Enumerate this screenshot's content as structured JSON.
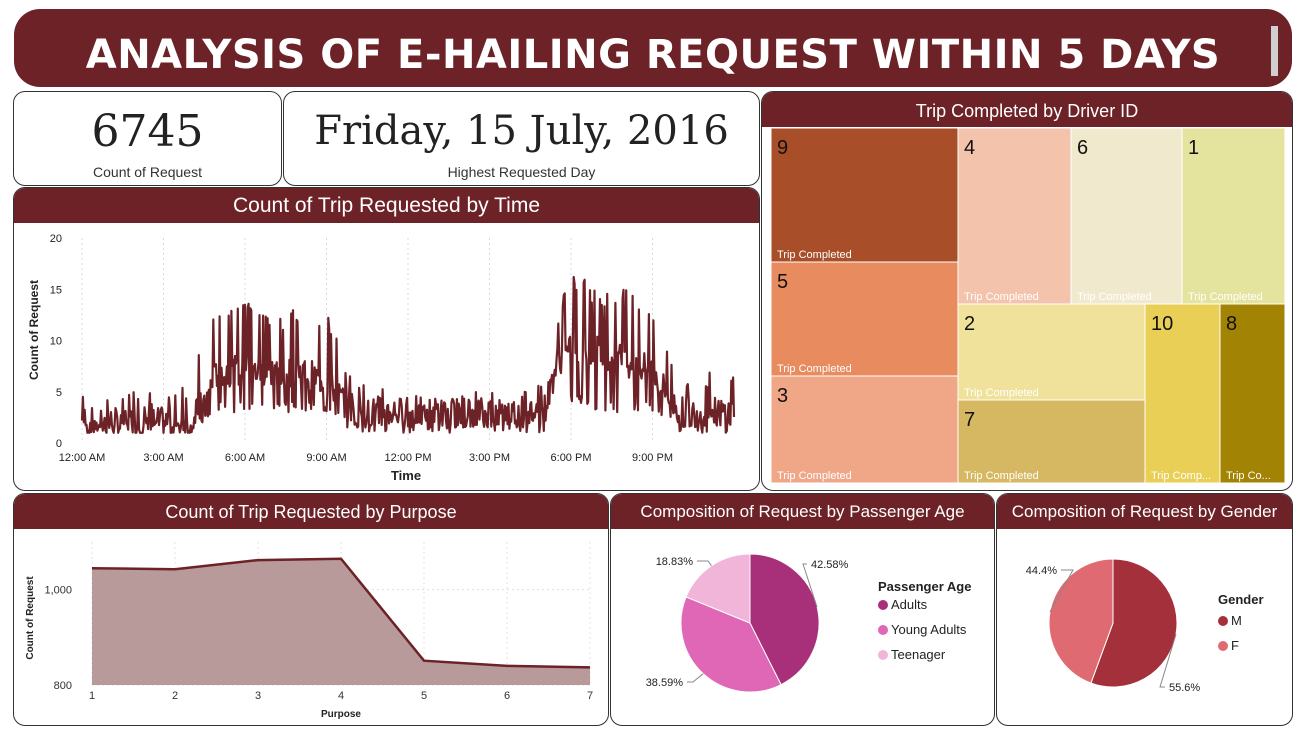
{
  "header": {
    "title": "ANALYSIS OF E-HAILING REQUEST WITHIN 5 DAYS"
  },
  "kpis": {
    "count": {
      "value": "6745",
      "label": "Count of Request"
    },
    "highest_day": {
      "value": "Friday, 15 July, 2016",
      "label": "Highest Requested Day"
    }
  },
  "colors": {
    "accent": "#6c2227",
    "line": "#6c2227",
    "area_fill": "#b99a9a",
    "adults": "#a8307a",
    "young_adults": "#e066b6",
    "teenager": "#f0b5d9",
    "male": "#a3303a",
    "female": "#e06a72"
  },
  "chart_data": [
    {
      "type": "line",
      "title": "Count of Trip Requested by Time",
      "xlabel": "Time",
      "ylabel": "Count of Request",
      "ylim": [
        0,
        20
      ],
      "yticks": [
        "0",
        "5",
        "10",
        "15",
        "20"
      ],
      "xticks": [
        "12:00 AM",
        "3:00 AM",
        "6:00 AM",
        "9:00 AM",
        "12:00 PM",
        "3:00 PM",
        "6:00 PM",
        "9:00 PM"
      ],
      "x_range_hours": [
        0,
        24
      ],
      "series": [
        {
          "hours": [
            0,
            1,
            2,
            3,
            4,
            4.5,
            5,
            6,
            7,
            8,
            9,
            10,
            11,
            12,
            13,
            14,
            15,
            16,
            17,
            17.5,
            18,
            19,
            20,
            21,
            22,
            23,
            24
          ],
          "low": [
            1,
            1,
            1,
            1,
            1,
            2,
            3,
            3,
            3,
            3,
            3,
            1,
            1,
            1,
            1,
            1,
            1,
            1,
            1,
            3,
            4,
            3,
            3,
            3,
            1,
            1,
            1
          ],
          "typical": [
            2,
            2,
            2,
            2,
            2,
            4,
            7,
            7,
            7,
            7,
            6,
            3,
            3,
            3,
            3,
            3,
            3,
            3,
            3,
            8,
            9,
            9,
            8,
            7,
            3,
            3,
            3
          ],
          "high": [
            5,
            5,
            5,
            5,
            6,
            11,
            13,
            14,
            13,
            13,
            13,
            6,
            6,
            5,
            5,
            5,
            5,
            5,
            6,
            13,
            17,
            15,
            15,
            13,
            7,
            7,
            7
          ]
        }
      ]
    },
    {
      "type": "area",
      "title": "Count of Trip Requested by Purpose",
      "xlabel": "Purpose",
      "ylabel": "Count of Request",
      "categories": [
        "1",
        "2",
        "3",
        "4",
        "5",
        "6",
        "7"
      ],
      "values": [
        1045,
        1043,
        1062,
        1065,
        851,
        840,
        837
      ],
      "ylim": [
        800,
        1100
      ],
      "yticks": [
        {
          "value": 800,
          "label": "800"
        },
        {
          "value": 1000,
          "label": "1,000"
        }
      ]
    },
    {
      "type": "treemap",
      "title": "Trip Completed by Driver ID",
      "tile_label": "Trip Completed",
      "tiles": [
        {
          "driver": "9",
          "label": "Trip Completed",
          "color": "#a84f2a"
        },
        {
          "driver": "5",
          "label": "Trip Completed",
          "color": "#e88b5f"
        },
        {
          "driver": "3",
          "label": "Trip Completed",
          "color": "#efa788"
        },
        {
          "driver": "4",
          "label": "Trip Completed",
          "color": "#f4c3ac"
        },
        {
          "driver": "6",
          "label": "Trip Completed",
          "color": "#f1e9cd"
        },
        {
          "driver": "1",
          "label": "Trip Completed",
          "color": "#e4e49e"
        },
        {
          "driver": "2",
          "label": "Trip Completed",
          "color": "#f0e29a"
        },
        {
          "driver": "7",
          "label": "Trip Completed",
          "color": "#d6b863"
        },
        {
          "driver": "10",
          "label": "Trip Comp...",
          "color": "#e9cf55"
        },
        {
          "driver": "8",
          "label": "Trip Co...",
          "color": "#a38303"
        }
      ]
    },
    {
      "type": "pie",
      "title": "Composition of Request by Passenger Age",
      "legend_title": "Passenger Age",
      "slices": [
        {
          "name": "Adults",
          "value": 42.58,
          "label": "42.58%"
        },
        {
          "name": "Young Adults",
          "value": 38.59,
          "label": "38.59%"
        },
        {
          "name": "Teenager",
          "value": 18.83,
          "label": "18.83%"
        }
      ]
    },
    {
      "type": "pie",
      "title": "Composition of Request by Gender",
      "legend_title": "Gender",
      "slices": [
        {
          "name": "M",
          "value": 55.6,
          "label": "55.6%"
        },
        {
          "name": "F",
          "value": 44.4,
          "label": "44.4%"
        }
      ]
    }
  ]
}
